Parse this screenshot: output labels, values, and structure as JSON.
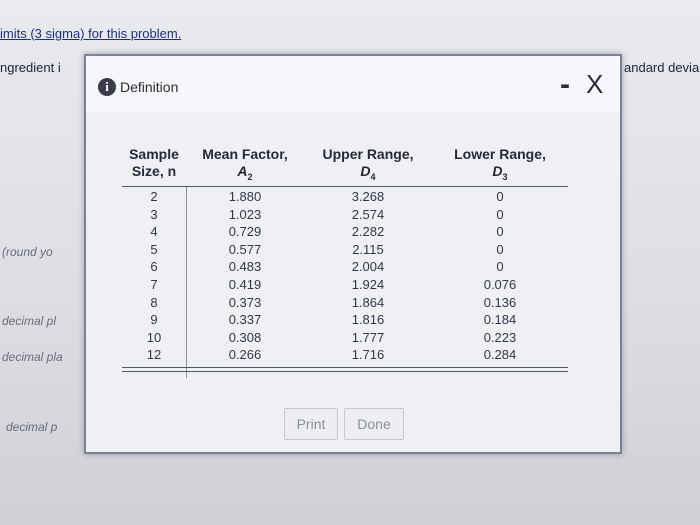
{
  "background": {
    "top_line": "imits (3 sigma) for this problem.",
    "left_1": "ngredient i",
    "right_1": "andard devia",
    "left_2": "(round yo",
    "left_3": "decimal pl",
    "left_4": "decimal pla",
    "left_5": "decimal p"
  },
  "dialog": {
    "title": "Definition",
    "minimize": "-",
    "close": "X",
    "table": {
      "headers": [
        {
          "line1": "Sample",
          "line2": "Size, n"
        },
        {
          "line1": "Mean Factor,",
          "symbol": "A",
          "sub": "2"
        },
        {
          "line1": "Upper Range,",
          "symbol": "D",
          "sub": "4"
        },
        {
          "line1": "Lower Range,",
          "symbol": "D",
          "sub": "3"
        }
      ],
      "rows": [
        [
          "2",
          "1.880",
          "3.268",
          "0"
        ],
        [
          "3",
          "1.023",
          "2.574",
          "0"
        ],
        [
          "4",
          "0.729",
          "2.282",
          "0"
        ],
        [
          "5",
          "0.577",
          "2.115",
          "0"
        ],
        [
          "6",
          "0.483",
          "2.004",
          "0"
        ],
        [
          "7",
          "0.419",
          "1.924",
          "0.076"
        ],
        [
          "8",
          "0.373",
          "1.864",
          "0.136"
        ],
        [
          "9",
          "0.337",
          "1.816",
          "0.184"
        ],
        [
          "10",
          "0.308",
          "1.777",
          "0.223"
        ],
        [
          "12",
          "0.266",
          "1.716",
          "0.284"
        ]
      ]
    },
    "buttons": [
      "Print",
      "Done"
    ]
  }
}
